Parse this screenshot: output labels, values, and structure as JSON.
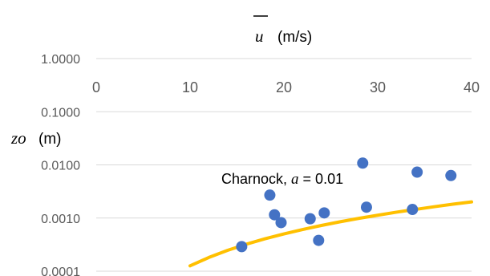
{
  "chart_data": {
    "type": "scatter",
    "title": "",
    "xlabel": {
      "var": "u",
      "unit": "(m/s)"
    },
    "ylabel": {
      "var": "zo",
      "unit": "(m)"
    },
    "xlim": [
      0,
      40
    ],
    "ylim": [
      0.0001,
      1
    ],
    "y_scale": "log",
    "x_ticks": [
      0,
      10,
      20,
      30,
      40
    ],
    "x_tick_labels": [
      "0",
      "10",
      "20",
      "30",
      "40"
    ],
    "y_ticks": [
      0.0001,
      0.001,
      0.01,
      0.1,
      1
    ],
    "y_tick_labels": [
      "0.0001",
      "0.0010",
      "0.0100",
      "0.1000",
      "1.0000"
    ],
    "x_axis_position": "top",
    "grid": true,
    "legend": "none",
    "series": [
      {
        "type": "scatter",
        "color": "#4472C4",
        "points": [
          {
            "x": 15.5,
            "y": 0.00029
          },
          {
            "x": 18.5,
            "y": 0.0027
          },
          {
            "x": 19.0,
            "y": 0.00115
          },
          {
            "x": 19.7,
            "y": 0.00082
          },
          {
            "x": 22.8,
            "y": 0.00097
          },
          {
            "x": 23.7,
            "y": 0.00038
          },
          {
            "x": 24.3,
            "y": 0.00125
          },
          {
            "x": 28.4,
            "y": 0.0108
          },
          {
            "x": 28.8,
            "y": 0.0016
          },
          {
            "x": 33.7,
            "y": 0.00145
          },
          {
            "x": 34.2,
            "y": 0.0073
          },
          {
            "x": 37.8,
            "y": 0.0063
          }
        ]
      },
      {
        "type": "line",
        "color": "#FFC000",
        "points": [
          {
            "x": 10,
            "y": 0.000126
          },
          {
            "x": 12,
            "y": 0.000181
          },
          {
            "x": 14,
            "y": 0.000247
          },
          {
            "x": 16,
            "y": 0.000322
          },
          {
            "x": 18,
            "y": 0.000408
          },
          {
            "x": 20,
            "y": 0.000503
          },
          {
            "x": 22,
            "y": 0.000609
          },
          {
            "x": 24,
            "y": 0.000725
          },
          {
            "x": 26,
            "y": 0.000851
          },
          {
            "x": 28,
            "y": 0.000987
          },
          {
            "x": 30,
            "y": 0.00113
          },
          {
            "x": 32,
            "y": 0.00129
          },
          {
            "x": 34,
            "y": 0.00145
          },
          {
            "x": 36,
            "y": 0.00163
          },
          {
            "x": 38,
            "y": 0.00182
          },
          {
            "x": 40,
            "y": 0.00201
          }
        ]
      }
    ],
    "annotations": [
      {
        "text_prefix": "Charnock, ",
        "var": "a",
        "text_suffix": " = 0.01",
        "x": 22.0,
        "y": 0.0045
      }
    ]
  }
}
